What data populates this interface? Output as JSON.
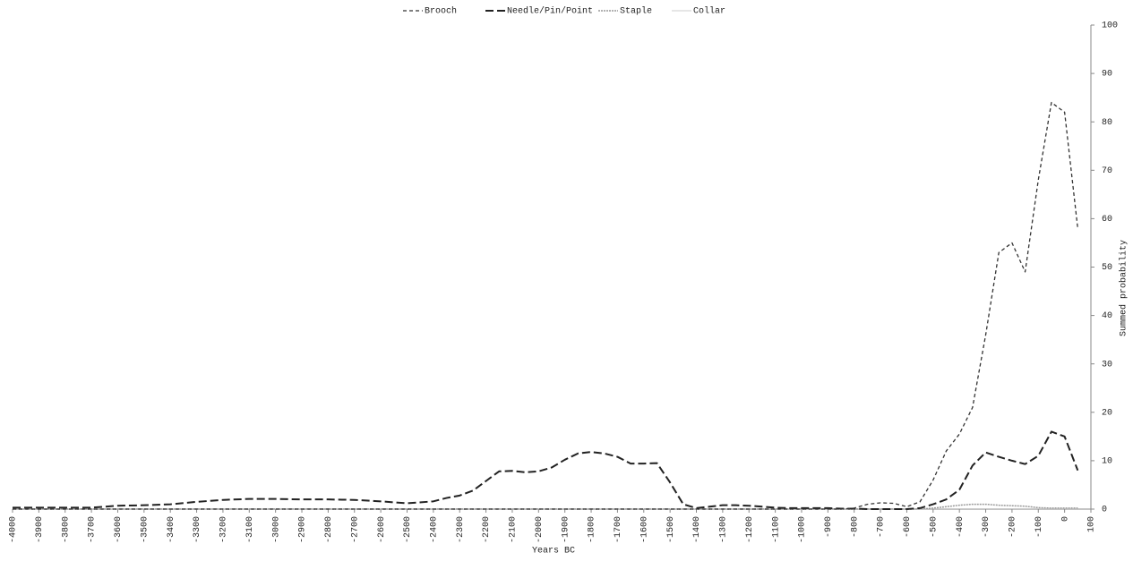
{
  "chart_data": {
    "type": "line",
    "xlabel": "Years BC",
    "ylabel": "Summed probability",
    "x": [
      -4000,
      -3900,
      -3800,
      -3700,
      -3600,
      -3500,
      -3400,
      -3300,
      -3200,
      -3100,
      -3000,
      -2900,
      -2800,
      -2700,
      -2600,
      -2500,
      -2400,
      -2350,
      -2300,
      -2250,
      -2200,
      -2150,
      -2100,
      -2050,
      -2000,
      -1950,
      -1900,
      -1850,
      -1800,
      -1750,
      -1700,
      -1650,
      -1600,
      -1550,
      -1500,
      -1450,
      -1400,
      -1350,
      -1300,
      -1250,
      -1200,
      -1150,
      -1100,
      -1050,
      -1000,
      -950,
      -900,
      -850,
      -800,
      -750,
      -700,
      -650,
      -600,
      -550,
      -500,
      -450,
      -400,
      -350,
      -300,
      -250,
      -200,
      -150,
      -100,
      -50,
      0,
      50
    ],
    "series": [
      {
        "name": "Brooch",
        "color": "#333333",
        "dash": "4,3",
        "width": 1.3,
        "values": [
          0,
          0,
          0,
          0,
          0,
          0,
          0,
          0,
          0,
          0,
          0,
          0,
          0,
          0,
          0,
          0,
          0,
          0,
          0,
          0,
          0,
          0,
          0,
          0,
          0,
          0,
          0,
          0,
          0,
          0,
          0,
          0,
          0,
          0,
          0,
          0,
          0,
          0,
          0,
          0,
          0,
          0,
          0,
          0,
          0,
          0,
          0,
          0,
          0.2,
          1,
          1.3,
          1.2,
          0.5,
          1.5,
          6,
          12,
          15.5,
          21,
          36,
          53,
          55,
          49,
          68,
          84,
          82,
          58
        ]
      },
      {
        "name": "Needle/Pin/Point",
        "color": "#222222",
        "dash": "9,4",
        "width": 2,
        "values": [
          0.3,
          0.3,
          0.3,
          0.3,
          0.7,
          0.8,
          1,
          1.5,
          1.9,
          2.1,
          2.1,
          2,
          2,
          1.9,
          1.6,
          1.2,
          1.6,
          2.3,
          2.8,
          3.8,
          5.8,
          7.8,
          7.9,
          7.6,
          7.8,
          8.6,
          10.2,
          11.5,
          11.8,
          11.5,
          10.8,
          9.4,
          9.4,
          9.5,
          5.5,
          1,
          0.2,
          0.5,
          0.8,
          0.8,
          0.7,
          0.5,
          0.3,
          0.2,
          0.2,
          0.2,
          0.2,
          0.1,
          0.1,
          0,
          0,
          0,
          0,
          0.2,
          1,
          2,
          4,
          9,
          11.7,
          10.8,
          10,
          9.3,
          11,
          16,
          15,
          8
        ]
      },
      {
        "name": "Staple",
        "color": "#999999",
        "dash": "2,1",
        "width": 1.5,
        "values": [
          0,
          0,
          0,
          0,
          0,
          0,
          0,
          0,
          0,
          0,
          0,
          0,
          0,
          0,
          0,
          0,
          0,
          0,
          0,
          0,
          0,
          0,
          0,
          0,
          0,
          0,
          0,
          0,
          0,
          0,
          0,
          0,
          0,
          0,
          0,
          0,
          0,
          0,
          0,
          0,
          0,
          0,
          0,
          0,
          0,
          0,
          0,
          0,
          0,
          0,
          0,
          0,
          0,
          0,
          0.2,
          0.5,
          0.8,
          1,
          1,
          0.8,
          0.7,
          0.6,
          0.3,
          0.2,
          0.2,
          0.2
        ]
      },
      {
        "name": "Collar",
        "color": "#cccccc",
        "dash": "none",
        "width": 1,
        "values": [
          0.1,
          0.1,
          0.1,
          0.1,
          0.1,
          0.1,
          0.1,
          0.1,
          0.1,
          0.1,
          0.1,
          0.1,
          0.1,
          0.1,
          0.1,
          0.1,
          0.1,
          0.1,
          0.1,
          0.1,
          0.1,
          0.1,
          0.1,
          0.1,
          0.1,
          0.1,
          0.1,
          0.1,
          0.1,
          0.1,
          0.1,
          0.1,
          0.1,
          0.1,
          0.1,
          0.1,
          0.1,
          0.1,
          0.1,
          0.1,
          0.1,
          0.1,
          0.1,
          0.1,
          0.1,
          0.1,
          0.1,
          0.1,
          0.1,
          0.1,
          0.1,
          0.1,
          0.1,
          0.1,
          0.1,
          0.1,
          0.1,
          0.1,
          0.1,
          0.1,
          0.1,
          0.1,
          0.1,
          0.1,
          0.1,
          0.1
        ]
      }
    ],
    "xlim": [
      -4000,
      100
    ],
    "xticks": [
      -4000,
      -3900,
      -3800,
      -3700,
      -3600,
      -3500,
      -3400,
      -3300,
      -3200,
      -3100,
      -3000,
      -2900,
      -2800,
      -2700,
      -2600,
      -2500,
      -2400,
      -2300,
      -2200,
      -2100,
      -2000,
      -1900,
      -1800,
      -1700,
      -1600,
      -1500,
      -1400,
      -1300,
      -1200,
      -1100,
      -1000,
      -900,
      -800,
      -700,
      -600,
      -500,
      -400,
      -300,
      -200,
      -100,
      0,
      100
    ],
    "ylim": [
      0,
      100
    ],
    "yticks": [
      0,
      10,
      20,
      30,
      40,
      50,
      60,
      70,
      80,
      90,
      100
    ],
    "legend": "top"
  }
}
